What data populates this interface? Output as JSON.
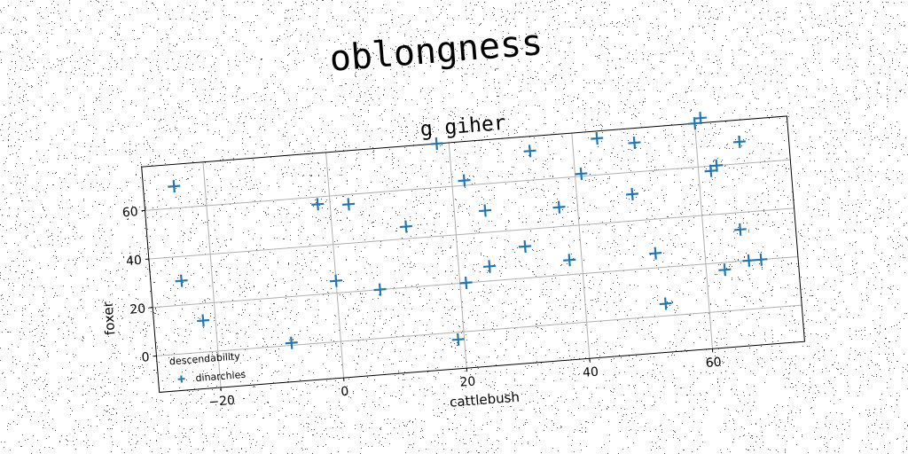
{
  "suptitle": "oblongness",
  "chart_data": {
    "type": "scatter",
    "title": "g giher",
    "xlabel": "cattlebush",
    "ylabel": "foxer",
    "xlim": [
      -30,
      75
    ],
    "ylim": [
      -15,
      78
    ],
    "xticks": [
      -20,
      0,
      20,
      40,
      60
    ],
    "yticks": [
      0,
      20,
      40,
      60
    ],
    "grid": true,
    "legend": {
      "title": "descendability",
      "placement": "lower-left"
    },
    "series": [
      {
        "name": "dinarchies",
        "color": "#1f77b4",
        "marker": "plus",
        "x": [
          -25,
          -25,
          -22,
          -8,
          -2,
          0,
          3,
          7,
          12,
          18,
          19,
          21,
          22,
          25,
          25,
          31,
          33,
          37,
          38,
          41,
          44,
          49,
          50,
          52,
          53,
          60,
          61,
          62,
          63,
          63,
          66,
          67,
          67,
          69
        ],
        "y": [
          69,
          30,
          13,
          1,
          57,
          25,
          56,
          20,
          45,
          78,
          -3,
          20,
          62,
          26,
          49,
          33,
          72,
          48,
          26,
          61,
          75,
          51,
          72,
          26,
          5,
          78,
          80,
          58,
          60,
          17,
          33,
          69,
          20,
          20
        ]
      }
    ]
  }
}
